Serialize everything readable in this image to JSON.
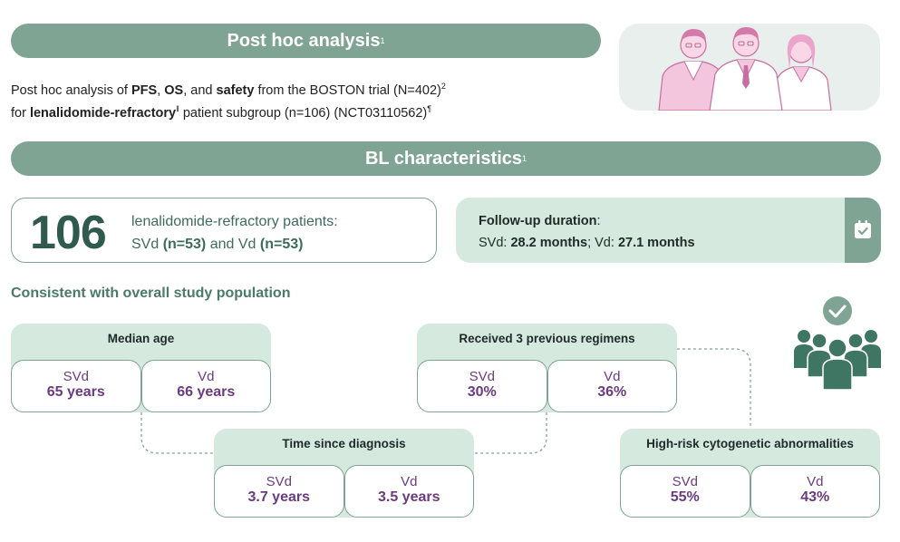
{
  "post_hoc": {
    "banner_title": "Post hoc analysis",
    "banner_sup": "1",
    "intro": {
      "p1": "Post hoc analysis of ",
      "b1": "PFS",
      "p2": ", ",
      "b2": "OS",
      "p3": ", and ",
      "b3": "safety",
      "p4": " from the BOSTON trial (N=402)",
      "sup1": "2",
      "p5": "for ",
      "b4": "lenalidomide-refractory",
      "sup2": "‖",
      "p6": " patient subgroup (n=106) (NCT03110562)",
      "sup3": "¶"
    }
  },
  "bl": {
    "banner_title": "BL characteristics",
    "banner_sup": "1",
    "count": {
      "number": "106",
      "line1": "lenalidomide-refractory patients:",
      "line2a": "SVd ",
      "line2b": "(n=53)",
      "line2c": " and Vd ",
      "line2d": "(n=53)"
    },
    "followup": {
      "label": "Follow-up duration",
      "colon": ":",
      "svd_label": "SVd: ",
      "svd_value": "28.2 months",
      "sep": "; Vd: ",
      "vd_value": "27.1 months"
    },
    "section_title": "Consistent with overall study population",
    "stats": {
      "age": {
        "title": "Median age",
        "svd_label": "SVd",
        "svd_value": "65 years",
        "vd_label": "Vd",
        "vd_value": "66 years"
      },
      "regimens": {
        "title": "Received 3 previous regimens",
        "svd_label": "SVd",
        "svd_value": "30%",
        "vd_label": "Vd",
        "vd_value": "36%"
      },
      "diagnosis": {
        "title": "Time since diagnosis",
        "svd_label": "SVd",
        "svd_value": "3.7 years",
        "vd_label": "Vd",
        "vd_value": "3.5 years"
      },
      "highrisk": {
        "title": "High-risk cytogenetic abnormalities",
        "svd_label": "SVd",
        "svd_value": "55%",
        "vd_label": "Vd",
        "vd_value": "43%"
      }
    }
  },
  "icons": {
    "doctors": "doctors-illustration",
    "calendar": "calendar-check-icon",
    "people": "group-check-icon"
  },
  "colors": {
    "banner": "#7fa493",
    "light_green": "#d6e9de",
    "dark_green": "#2f5a4d",
    "purple": "#6b3b7f",
    "pink": "#eba4cb"
  }
}
